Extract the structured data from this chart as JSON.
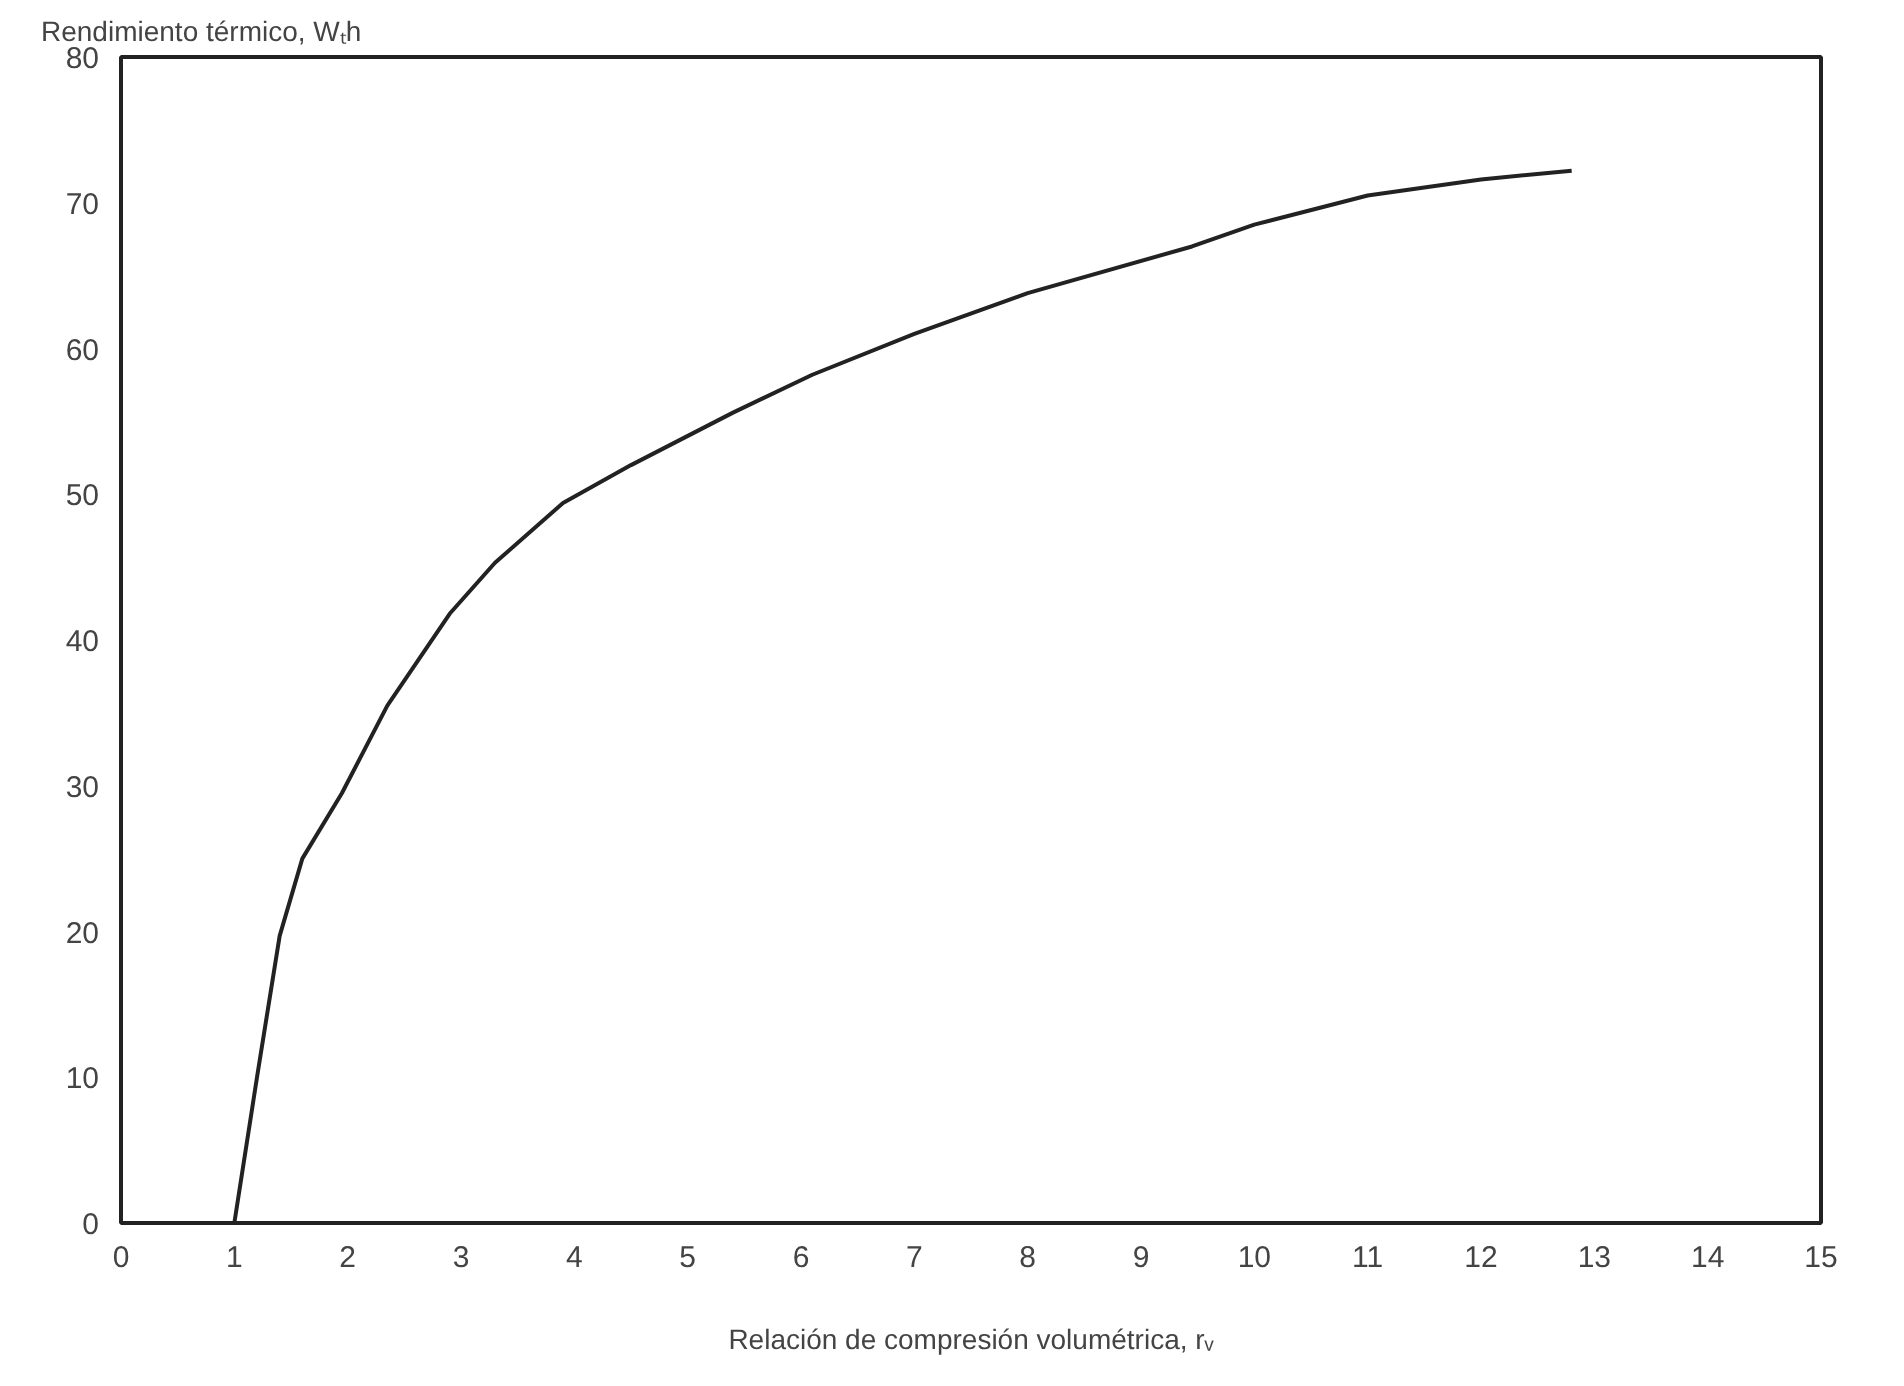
{
  "chart_data": {
    "type": "line",
    "ylabel": "Rendimiento térmico, Wₜh",
    "xlabel": "Relación de compresión volumétrica, rᵥ",
    "x": [
      1,
      1.2,
      1.4,
      1.6,
      1.95,
      2.35,
      2.9,
      3.3,
      3.9,
      4.5,
      5.4,
      6.1,
      7,
      8,
      9.45,
      10,
      11,
      12,
      12.8
    ],
    "series": [
      {
        "color": "#222222",
        "values": [
          0,
          10,
          19.7,
          25,
          29.5,
          35.5,
          41.8,
          45.3,
          49.4,
          52,
          55.6,
          58.2,
          61,
          63.8,
          67,
          68.5,
          70.5,
          71.6,
          72.2
        ]
      }
    ],
    "xlim": [
      0,
      15
    ],
    "ylim": [
      0,
      80
    ],
    "xticks": [
      0,
      1,
      2,
      3,
      4,
      5,
      6,
      7,
      8,
      9,
      10,
      11,
      12,
      13,
      14,
      15
    ],
    "yticks": [
      0,
      10,
      20,
      30,
      40,
      50,
      60,
      70,
      80
    ],
    "grid": false,
    "marker": "none",
    "line_style": "solid"
  }
}
